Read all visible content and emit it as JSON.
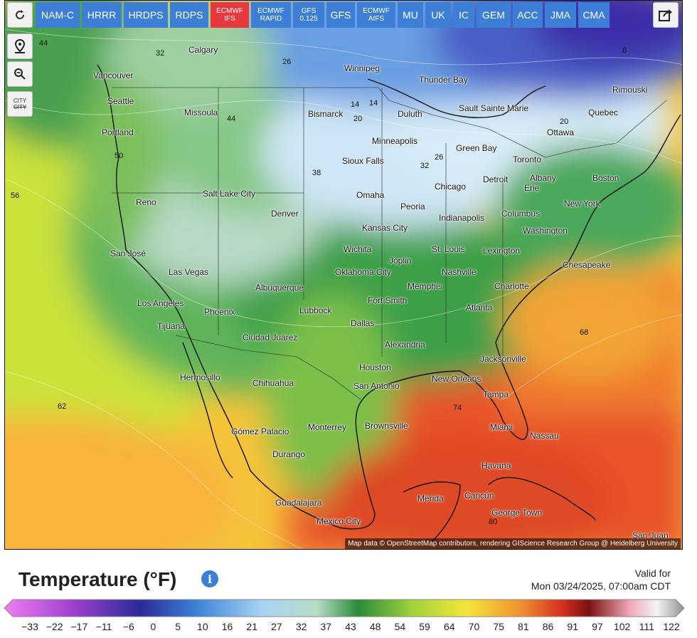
{
  "toolbar": {
    "refresh_icon": "refresh-icon",
    "location_icon": "map-pin-icon",
    "zoom_icon": "zoom-out-icon",
    "city_toggle": {
      "line1": "CITY",
      "line2": "CITY"
    },
    "share_icon": "share-icon"
  },
  "models": [
    {
      "label": "NAM-C",
      "active": false
    },
    {
      "label": "HRRR",
      "active": false
    },
    {
      "label": "HRDPS",
      "active": false
    },
    {
      "label": "RDPS",
      "active": false
    },
    {
      "label": "ECMWF IFS",
      "line1": "ECMWF",
      "line2": "IFS",
      "active": true
    },
    {
      "label": "ECMWF RAPID",
      "line1": "ECMWF",
      "line2": "RAPID",
      "active": false
    },
    {
      "label": "GFS 0.125",
      "line1": "GFS",
      "line2": "0.125",
      "active": false
    },
    {
      "label": "GFS",
      "active": false
    },
    {
      "label": "ECMWF AIFS",
      "line1": "ECMWF",
      "line2": "AIFS",
      "active": false
    },
    {
      "label": "MU",
      "active": false
    },
    {
      "label": "UK",
      "active": false
    },
    {
      "label": "IC",
      "active": false
    },
    {
      "label": "GEM",
      "active": false
    },
    {
      "label": "ACC",
      "active": false
    },
    {
      "label": "JMA",
      "active": false
    },
    {
      "label": "CMA",
      "active": false
    }
  ],
  "colors": {
    "model_button": "#3d7fd6",
    "model_active": "#e8383f",
    "info": "#3d7fd6"
  },
  "cities": [
    {
      "name": "Calgary"
    },
    {
      "name": "Winnipeg"
    },
    {
      "name": "Thunder Bay"
    },
    {
      "name": "Rimouski"
    },
    {
      "name": "Vancouver"
    },
    {
      "name": "Seattle"
    },
    {
      "name": "Missoula"
    },
    {
      "name": "Bismarck"
    },
    {
      "name": "Duluth"
    },
    {
      "name": "Sault Sainte Marie"
    },
    {
      "name": "Quebec"
    },
    {
      "name": "Ottawa"
    },
    {
      "name": "Portland"
    },
    {
      "name": "Minneapolis"
    },
    {
      "name": "Green Bay"
    },
    {
      "name": "Toronto"
    },
    {
      "name": "Sioux Falls"
    },
    {
      "name": "Detroit"
    },
    {
      "name": "Albany"
    },
    {
      "name": "Boston"
    },
    {
      "name": "Salt Lake City"
    },
    {
      "name": "Omaha"
    },
    {
      "name": "Chicago"
    },
    {
      "name": "Erie"
    },
    {
      "name": "Reno"
    },
    {
      "name": "Denver"
    },
    {
      "name": "Peoria"
    },
    {
      "name": "New York"
    },
    {
      "name": "Indianapolis"
    },
    {
      "name": "Columbus"
    },
    {
      "name": "Kansas City"
    },
    {
      "name": "Washington"
    },
    {
      "name": "San José"
    },
    {
      "name": "Wichita"
    },
    {
      "name": "St. Louis"
    },
    {
      "name": "Lexington"
    },
    {
      "name": "Joplin"
    },
    {
      "name": "Las Vegas"
    },
    {
      "name": "Nashville"
    },
    {
      "name": "Chesapeake"
    },
    {
      "name": "Oklahoma City"
    },
    {
      "name": "Albuquerque"
    },
    {
      "name": "Memphis"
    },
    {
      "name": "Charlotte"
    },
    {
      "name": "Los Angeles"
    },
    {
      "name": "Fort Smith"
    },
    {
      "name": "Phoenix"
    },
    {
      "name": "Lubbock"
    },
    {
      "name": "Atlanta"
    },
    {
      "name": "Dallas"
    },
    {
      "name": "Tijuana"
    },
    {
      "name": "Ciudad Juárez"
    },
    {
      "name": "Alexandria"
    },
    {
      "name": "Jacksonville"
    },
    {
      "name": "Houston"
    },
    {
      "name": "Hermosillo"
    },
    {
      "name": "New Orleans"
    },
    {
      "name": "Chihuahua"
    },
    {
      "name": "San Antonio"
    },
    {
      "name": "Tampa"
    },
    {
      "name": "Brownsville"
    },
    {
      "name": "Miami"
    },
    {
      "name": "Nassau"
    },
    {
      "name": "Gómez Palacio"
    },
    {
      "name": "Monterrey"
    },
    {
      "name": "Durango"
    },
    {
      "name": "Havana"
    },
    {
      "name": "Mérida"
    },
    {
      "name": "Cancún"
    },
    {
      "name": "Guadalajara"
    },
    {
      "name": "George Town"
    },
    {
      "name": "Mexico City"
    },
    {
      "name": "San Juan"
    }
  ],
  "isotherm_labels": [
    "44",
    "32",
    "26",
    "32",
    "20",
    "14",
    "8",
    "14",
    "20",
    "26",
    "38",
    "44",
    "50",
    "56",
    "62",
    "68",
    "74",
    "80"
  ],
  "attribution": "Map data © OpenStreetMap contributors, rendering GIScience Research Group @ Heidelberg University",
  "legend": {
    "title": "Temperature (°F)",
    "info_icon": "info-icon",
    "valid_label": "Valid for",
    "valid_time": "Mon 03/24/2025, 07:00am CDT",
    "ticks": [
      "−33",
      "−22",
      "−17",
      "−11",
      "−6",
      "0",
      "5",
      "10",
      "16",
      "21",
      "27",
      "32",
      "37",
      "43",
      "48",
      "54",
      "59",
      "64",
      "70",
      "75",
      "81",
      "86",
      "91",
      "97",
      "102",
      "111",
      "122"
    ]
  }
}
